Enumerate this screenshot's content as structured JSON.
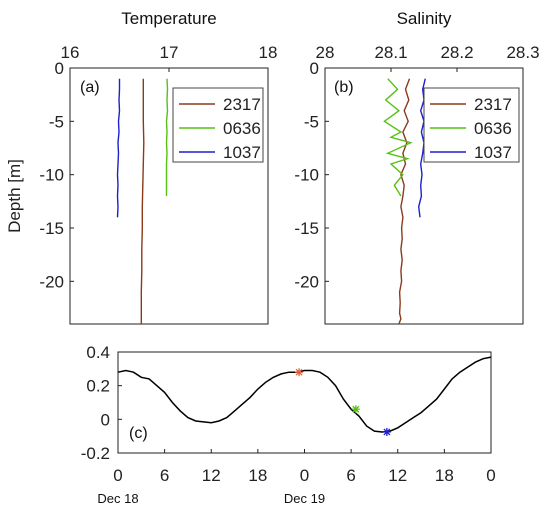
{
  "chart_data": [
    {
      "type": "line",
      "panel_label": "(a)",
      "title": "Temperature",
      "ylabel": "Depth [m]",
      "xlim": [
        16,
        18
      ],
      "ylim": [
        -24,
        0
      ],
      "xticks": [
        "16",
        "17",
        "18"
      ],
      "yticks": [
        "0",
        "-5",
        "-10",
        "-15",
        "-20"
      ],
      "legend_position": "top-right",
      "series": [
        {
          "name": "2317",
          "color": "#8b3a1a",
          "x": [
            16.74,
            16.74,
            16.74,
            16.745,
            16.74,
            16.735,
            16.73,
            16.73,
            16.725,
            16.725,
            16.72,
            16.72,
            16.72
          ],
          "y": [
            -1,
            -3,
            -5,
            -7,
            -9,
            -11,
            -13,
            -15,
            -17,
            -19,
            -21,
            -23,
            -24
          ]
        },
        {
          "name": "0636",
          "color": "#55c214",
          "x": [
            16.98,
            16.985,
            16.98,
            16.985,
            16.975,
            16.98,
            16.975,
            16.98,
            16.975,
            16.975,
            16.975,
            16.975
          ],
          "y": [
            -1,
            -2,
            -3,
            -4,
            -5,
            -6,
            -7,
            -8,
            -9,
            -10,
            -11,
            -12
          ]
        },
        {
          "name": "1037",
          "color": "#1f1fcf",
          "x": [
            16.5,
            16.5,
            16.495,
            16.5,
            16.49,
            16.495,
            16.485,
            16.49,
            16.485,
            16.48,
            16.485,
            16.48,
            16.485,
            16.48
          ],
          "y": [
            -1,
            -2,
            -3,
            -4,
            -5,
            -6,
            -7,
            -8,
            -9,
            -10,
            -11,
            -12,
            -13,
            -14
          ]
        }
      ]
    },
    {
      "type": "line",
      "panel_label": "(b)",
      "title": "Salinity",
      "xlim": [
        28,
        28.3
      ],
      "ylim": [
        -24,
        0
      ],
      "xticks": [
        "28",
        "28.1",
        "28.2",
        "28.3"
      ],
      "yticks": [
        "0",
        "-5",
        "-10",
        "-15",
        "-20"
      ],
      "legend_position": "top-right",
      "series": [
        {
          "name": "2317",
          "color": "#8b3a1a",
          "x": [
            28.128,
            28.122,
            28.127,
            28.12,
            28.126,
            28.118,
            28.124,
            28.118,
            28.122,
            28.115,
            28.12,
            28.118,
            28.115,
            28.118,
            28.116,
            28.117,
            28.115,
            28.117,
            28.115,
            28.116,
            28.113,
            28.114,
            28.113,
            28.115,
            28.112
          ],
          "y": [
            -1,
            -2,
            -3,
            -4,
            -5,
            -6,
            -7,
            -8,
            -9,
            -10,
            -11,
            -12,
            -13,
            -14,
            -15,
            -16,
            -17,
            -18,
            -19,
            -20,
            -21,
            -22,
            -23,
            -23.5,
            -24
          ]
        },
        {
          "name": "0636",
          "color": "#55c214",
          "x": [
            28.095,
            28.11,
            28.092,
            28.112,
            28.09,
            28.115,
            28.1,
            28.13,
            28.095,
            28.125,
            28.1,
            28.118,
            28.105,
            28.115
          ],
          "y": [
            -1,
            -2,
            -3,
            -4,
            -5,
            -6,
            -6.5,
            -7,
            -8,
            -8.5,
            -9,
            -10,
            -11,
            -12
          ]
        },
        {
          "name": "1037",
          "color": "#1f1fcf",
          "x": [
            28.152,
            28.148,
            28.15,
            28.145,
            28.15,
            28.146,
            28.15,
            28.148,
            28.145,
            28.147,
            28.145,
            28.146,
            28.142,
            28.144
          ],
          "y": [
            -1,
            -2,
            -3,
            -4,
            -5,
            -6,
            -7,
            -8,
            -9,
            -10,
            -11,
            -12,
            -13,
            -14
          ]
        }
      ]
    },
    {
      "type": "line",
      "panel_label": "(c)",
      "xlim": [
        0,
        48
      ],
      "ylim": [
        -0.2,
        0.4
      ],
      "xticks": [
        "0",
        "6",
        "12",
        "18",
        "0",
        "6",
        "12",
        "18",
        "0"
      ],
      "yticks": [
        "0.4",
        "0.2",
        "0",
        "-0.2"
      ],
      "date_labels": [
        {
          "text": "Dec 18",
          "x": 0
        },
        {
          "text": "Dec 19",
          "x": 24
        }
      ],
      "series": [
        {
          "color": "#000000",
          "x": [
            0,
            1,
            2,
            3,
            4,
            5,
            6,
            7,
            8,
            9,
            10,
            11,
            12,
            13,
            14,
            15,
            16,
            17,
            18,
            19,
            20,
            21,
            22,
            23,
            24,
            25,
            26,
            27,
            28,
            29,
            30,
            31,
            32,
            33,
            34,
            35,
            36,
            37,
            38,
            39,
            40,
            41,
            42,
            43,
            44,
            45,
            46,
            47,
            48
          ],
          "y": [
            0.28,
            0.29,
            0.28,
            0.25,
            0.24,
            0.2,
            0.16,
            0.1,
            0.05,
            0.01,
            -0.01,
            -0.015,
            -0.02,
            -0.01,
            0.01,
            0.05,
            0.09,
            0.13,
            0.18,
            0.22,
            0.25,
            0.27,
            0.28,
            0.28,
            0.29,
            0.29,
            0.28,
            0.25,
            0.2,
            0.12,
            0.06,
            0.02,
            -0.04,
            -0.07,
            -0.075,
            -0.07,
            -0.05,
            -0.02,
            0.01,
            0.04,
            0.08,
            0.12,
            0.18,
            0.24,
            0.28,
            0.31,
            0.34,
            0.36,
            0.37
          ]
        }
      ],
      "markers": [
        {
          "name": "2317",
          "x": 23.3,
          "y": 0.28,
          "color": "#e06040"
        },
        {
          "name": "0636",
          "x": 30.6,
          "y": 0.06,
          "color": "#55c214"
        },
        {
          "name": "1037",
          "x": 34.6,
          "y": -0.075,
          "color": "#1f1fcf"
        }
      ]
    }
  ]
}
